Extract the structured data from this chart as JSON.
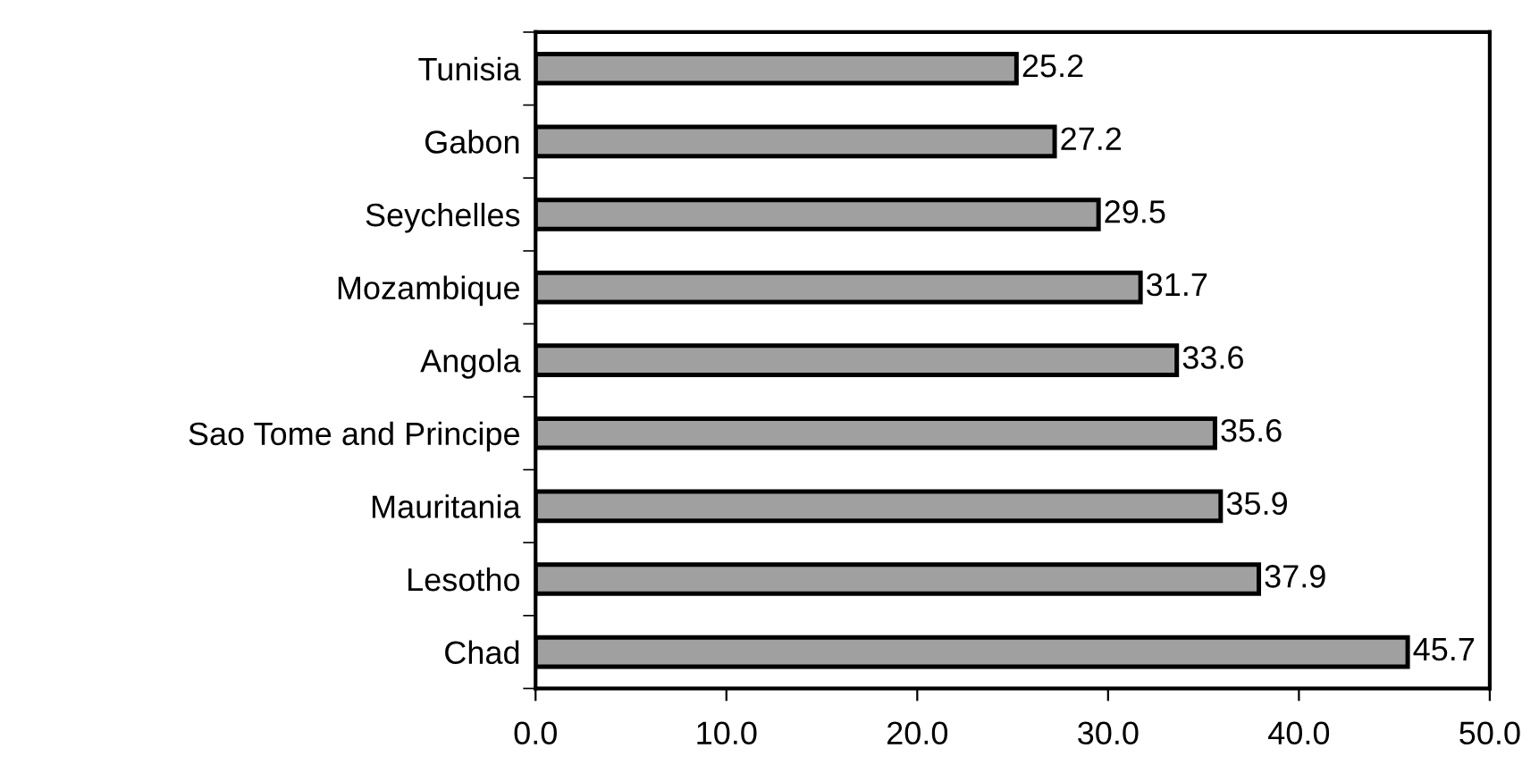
{
  "chart_data": {
    "type": "bar",
    "orientation": "horizontal",
    "categories": [
      "Tunisia",
      "Gabon",
      "Seychelles",
      "Mozambique",
      "Angola",
      "Sao Tome and Principe",
      "Mauritania",
      "Lesotho",
      "Chad"
    ],
    "values": [
      25.2,
      27.2,
      29.5,
      31.7,
      33.6,
      35.6,
      35.9,
      37.9,
      45.7
    ],
    "color": "#a0a0a0",
    "xlim": [
      0,
      50
    ],
    "xticks": [
      {
        "value": 0,
        "label": "0.0"
      },
      {
        "value": 10,
        "label": "10.0"
      },
      {
        "value": 20,
        "label": "20.0"
      },
      {
        "value": 30,
        "label": "30.0"
      },
      {
        "value": 40,
        "label": "40.0"
      },
      {
        "value": 50,
        "label": "50.0"
      }
    ],
    "data_labels": true,
    "grid": false,
    "legend": false
  }
}
